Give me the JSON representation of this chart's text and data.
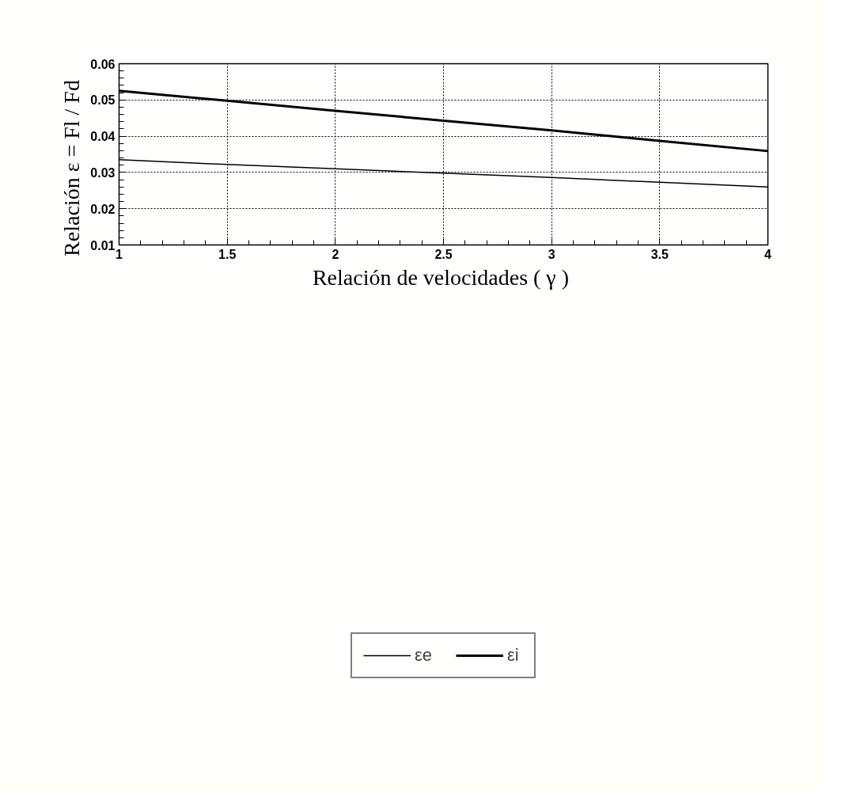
{
  "chart_data": {
    "type": "line",
    "xlabel": "Relación de velocidades  ( γ )",
    "ylabel": "Relación  ε  =  Fl  /  Fd",
    "x": [
      1,
      1.5,
      2,
      2.5,
      3,
      3.5,
      4
    ],
    "series": [
      {
        "name": "εe",
        "color": "#000000",
        "values": [
          0.0335,
          0.0322,
          0.031,
          0.0298,
          0.0286,
          0.0273,
          0.026
        ]
      },
      {
        "name": "εi",
        "color": "#000000",
        "values": [
          0.0525,
          0.0498,
          0.047,
          0.0443,
          0.0416,
          0.0387,
          0.0359
        ]
      }
    ],
    "xlim": [
      1,
      4
    ],
    "ylim": [
      0.01,
      0.06
    ],
    "xticks": [
      1,
      1.5,
      2,
      2.5,
      3,
      3.5,
      4
    ],
    "yticks": [
      0.01,
      0.02,
      0.03,
      0.04,
      0.05,
      0.06
    ],
    "grid": true,
    "legend": "bottom",
    "marker": "none",
    "line_style": "solid"
  }
}
